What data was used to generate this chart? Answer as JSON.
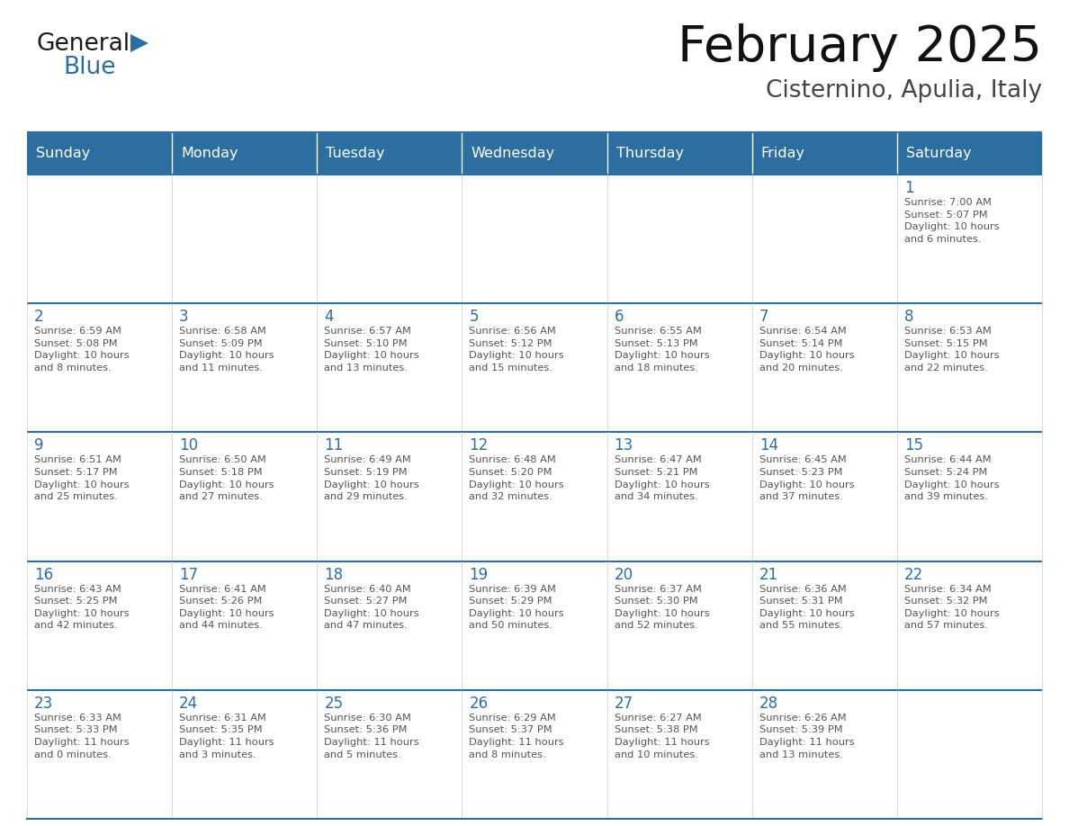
{
  "title": "February 2025",
  "subtitle": "Cisternino, Apulia, Italy",
  "days_of_week": [
    "Sunday",
    "Monday",
    "Tuesday",
    "Wednesday",
    "Thursday",
    "Friday",
    "Saturday"
  ],
  "header_bg": "#2D6EA0",
  "header_text_color": "#FFFFFF",
  "cell_bg": "#FFFFFF",
  "day_number_color": "#2D6EA0",
  "text_color": "#555555",
  "line_color": "#2D6EA0",
  "logo_black": "#1a1a1a",
  "logo_blue": "#2D6EA0",
  "weeks": [
    [
      {
        "day": null,
        "info": null
      },
      {
        "day": null,
        "info": null
      },
      {
        "day": null,
        "info": null
      },
      {
        "day": null,
        "info": null
      },
      {
        "day": null,
        "info": null
      },
      {
        "day": null,
        "info": null
      },
      {
        "day": 1,
        "info": "Sunrise: 7:00 AM\nSunset: 5:07 PM\nDaylight: 10 hours\nand 6 minutes."
      }
    ],
    [
      {
        "day": 2,
        "info": "Sunrise: 6:59 AM\nSunset: 5:08 PM\nDaylight: 10 hours\nand 8 minutes."
      },
      {
        "day": 3,
        "info": "Sunrise: 6:58 AM\nSunset: 5:09 PM\nDaylight: 10 hours\nand 11 minutes."
      },
      {
        "day": 4,
        "info": "Sunrise: 6:57 AM\nSunset: 5:10 PM\nDaylight: 10 hours\nand 13 minutes."
      },
      {
        "day": 5,
        "info": "Sunrise: 6:56 AM\nSunset: 5:12 PM\nDaylight: 10 hours\nand 15 minutes."
      },
      {
        "day": 6,
        "info": "Sunrise: 6:55 AM\nSunset: 5:13 PM\nDaylight: 10 hours\nand 18 minutes."
      },
      {
        "day": 7,
        "info": "Sunrise: 6:54 AM\nSunset: 5:14 PM\nDaylight: 10 hours\nand 20 minutes."
      },
      {
        "day": 8,
        "info": "Sunrise: 6:53 AM\nSunset: 5:15 PM\nDaylight: 10 hours\nand 22 minutes."
      }
    ],
    [
      {
        "day": 9,
        "info": "Sunrise: 6:51 AM\nSunset: 5:17 PM\nDaylight: 10 hours\nand 25 minutes."
      },
      {
        "day": 10,
        "info": "Sunrise: 6:50 AM\nSunset: 5:18 PM\nDaylight: 10 hours\nand 27 minutes."
      },
      {
        "day": 11,
        "info": "Sunrise: 6:49 AM\nSunset: 5:19 PM\nDaylight: 10 hours\nand 29 minutes."
      },
      {
        "day": 12,
        "info": "Sunrise: 6:48 AM\nSunset: 5:20 PM\nDaylight: 10 hours\nand 32 minutes."
      },
      {
        "day": 13,
        "info": "Sunrise: 6:47 AM\nSunset: 5:21 PM\nDaylight: 10 hours\nand 34 minutes."
      },
      {
        "day": 14,
        "info": "Sunrise: 6:45 AM\nSunset: 5:23 PM\nDaylight: 10 hours\nand 37 minutes."
      },
      {
        "day": 15,
        "info": "Sunrise: 6:44 AM\nSunset: 5:24 PM\nDaylight: 10 hours\nand 39 minutes."
      }
    ],
    [
      {
        "day": 16,
        "info": "Sunrise: 6:43 AM\nSunset: 5:25 PM\nDaylight: 10 hours\nand 42 minutes."
      },
      {
        "day": 17,
        "info": "Sunrise: 6:41 AM\nSunset: 5:26 PM\nDaylight: 10 hours\nand 44 minutes."
      },
      {
        "day": 18,
        "info": "Sunrise: 6:40 AM\nSunset: 5:27 PM\nDaylight: 10 hours\nand 47 minutes."
      },
      {
        "day": 19,
        "info": "Sunrise: 6:39 AM\nSunset: 5:29 PM\nDaylight: 10 hours\nand 50 minutes."
      },
      {
        "day": 20,
        "info": "Sunrise: 6:37 AM\nSunset: 5:30 PM\nDaylight: 10 hours\nand 52 minutes."
      },
      {
        "day": 21,
        "info": "Sunrise: 6:36 AM\nSunset: 5:31 PM\nDaylight: 10 hours\nand 55 minutes."
      },
      {
        "day": 22,
        "info": "Sunrise: 6:34 AM\nSunset: 5:32 PM\nDaylight: 10 hours\nand 57 minutes."
      }
    ],
    [
      {
        "day": 23,
        "info": "Sunrise: 6:33 AM\nSunset: 5:33 PM\nDaylight: 11 hours\nand 0 minutes."
      },
      {
        "day": 24,
        "info": "Sunrise: 6:31 AM\nSunset: 5:35 PM\nDaylight: 11 hours\nand 3 minutes."
      },
      {
        "day": 25,
        "info": "Sunrise: 6:30 AM\nSunset: 5:36 PM\nDaylight: 11 hours\nand 5 minutes."
      },
      {
        "day": 26,
        "info": "Sunrise: 6:29 AM\nSunset: 5:37 PM\nDaylight: 11 hours\nand 8 minutes."
      },
      {
        "day": 27,
        "info": "Sunrise: 6:27 AM\nSunset: 5:38 PM\nDaylight: 11 hours\nand 10 minutes."
      },
      {
        "day": 28,
        "info": "Sunrise: 6:26 AM\nSunset: 5:39 PM\nDaylight: 11 hours\nand 13 minutes."
      },
      {
        "day": null,
        "info": null
      }
    ]
  ]
}
